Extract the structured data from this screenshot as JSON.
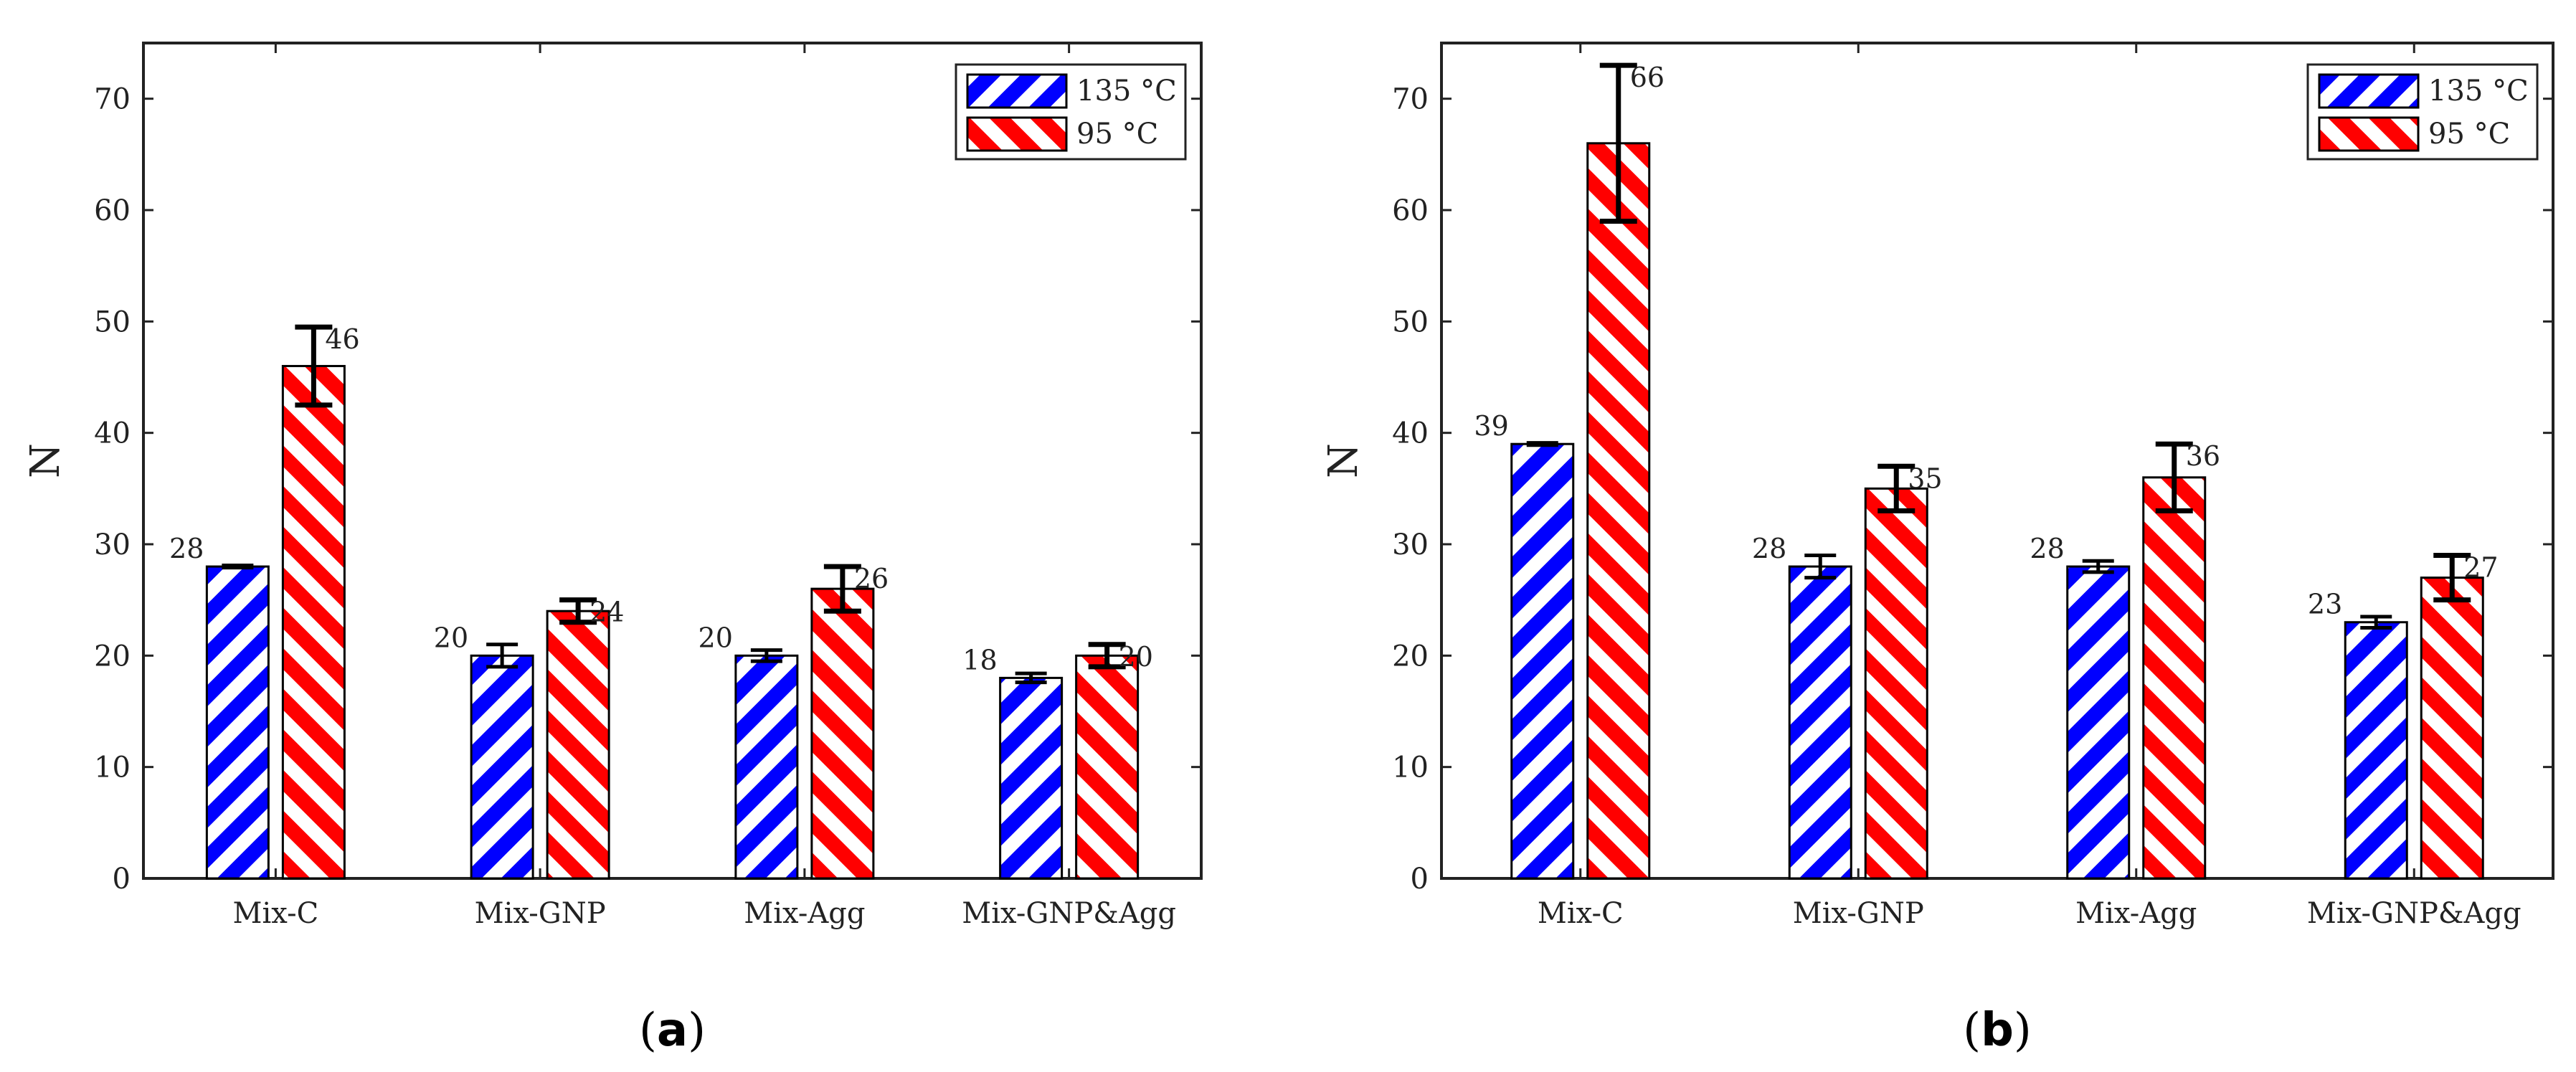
{
  "chart_data": [
    {
      "type": "bar",
      "panel_label": "(a)",
      "panel_letter": "a",
      "ylabel": "N",
      "xlabel": "",
      "ylim": [
        0,
        75
      ],
      "yticks": [
        0,
        10,
        20,
        30,
        40,
        50,
        60,
        70
      ],
      "categories": [
        "Mix-C",
        "Mix-GNP",
        "Mix-Agg",
        "Mix-GNP&Agg"
      ],
      "legend_position": "top-right",
      "series": [
        {
          "name": "135 °C",
          "color": "#0000ff",
          "values": [
            28,
            20,
            20,
            18
          ],
          "errors": [
            0.1,
            1.0,
            0.5,
            0.4
          ],
          "labels": [
            "28",
            "20",
            "20",
            "18"
          ]
        },
        {
          "name": "95 °C",
          "color": "#ff0000",
          "values": [
            46,
            24,
            26,
            20
          ],
          "errors": [
            3.5,
            1.0,
            2.0,
            1.0
          ],
          "labels": [
            "46",
            "24",
            "26",
            "20"
          ]
        }
      ]
    },
    {
      "type": "bar",
      "panel_label": "(b)",
      "panel_letter": "b",
      "ylabel": "N",
      "xlabel": "",
      "ylim": [
        0,
        75
      ],
      "yticks": [
        0,
        10,
        20,
        30,
        40,
        50,
        60,
        70
      ],
      "categories": [
        "Mix-C",
        "Mix-GNP",
        "Mix-Agg",
        "Mix-GNP&Agg"
      ],
      "legend_position": "top-right",
      "series": [
        {
          "name": "135 °C",
          "color": "#0000ff",
          "values": [
            39,
            28,
            28,
            23
          ],
          "errors": [
            0.1,
            1.0,
            0.5,
            0.5
          ],
          "labels": [
            "39",
            "28",
            "28",
            "23"
          ]
        },
        {
          "name": "95 °C",
          "color": "#ff0000",
          "values": [
            66,
            35,
            36,
            27
          ],
          "errors": [
            7.0,
            2.0,
            3.0,
            2.0
          ],
          "labels": [
            "66",
            "35",
            "36",
            "27"
          ]
        }
      ]
    }
  ]
}
